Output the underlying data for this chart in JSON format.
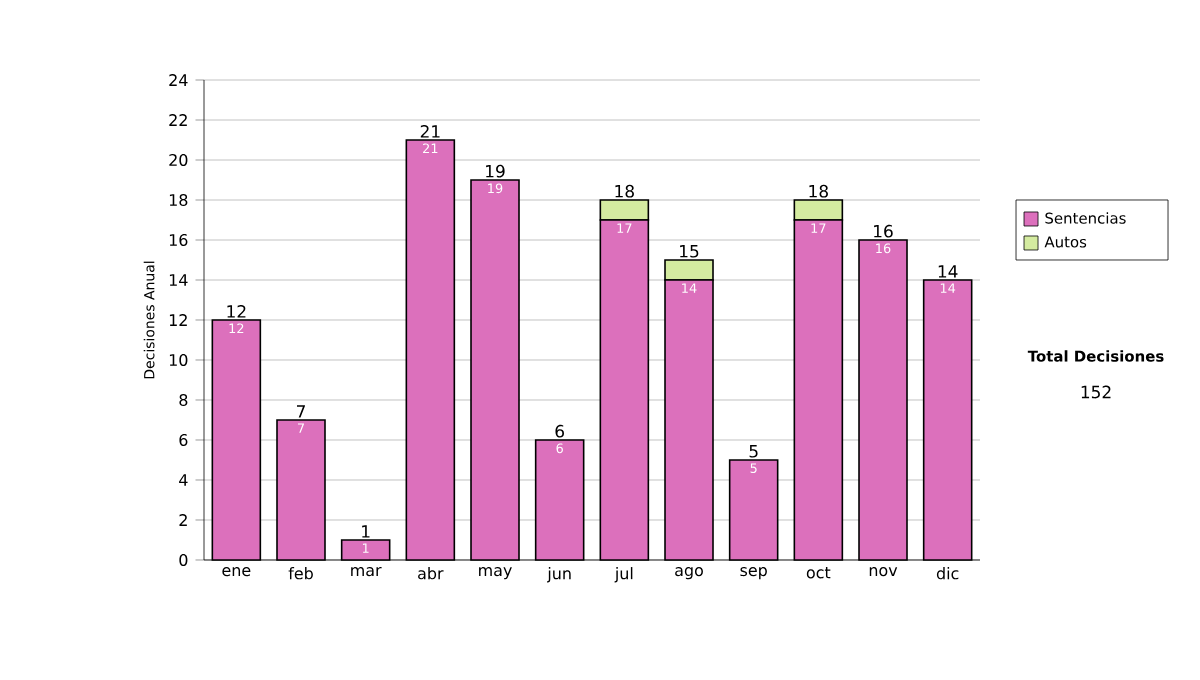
{
  "chart_data": {
    "type": "bar",
    "stacked": true,
    "ylabel": "Decisiones Anual",
    "categories": [
      "ene",
      "feb",
      "mar",
      "abr",
      "may",
      "jun",
      "jul",
      "ago",
      "sep",
      "oct",
      "nov",
      "dic"
    ],
    "series": [
      {
        "name": "Sentencias",
        "color": "#dc70bc",
        "values": [
          12,
          7,
          1,
          21,
          19,
          6,
          17,
          14,
          5,
          17,
          16,
          14
        ],
        "value_labels": [
          "12",
          "7",
          "1",
          "21",
          "19",
          "6",
          "17",
          "14",
          "5",
          "17",
          "16",
          "14"
        ]
      },
      {
        "name": "Autos",
        "color": "#d4eba0",
        "values": [
          0,
          0,
          0,
          0,
          0,
          0,
          1,
          1,
          0,
          1,
          0,
          0
        ]
      }
    ],
    "totals": [
      "12",
      "7",
      "1",
      "21",
      "19",
      "6",
      "18",
      "15",
      "5",
      "18",
      "16",
      "14"
    ],
    "ylim": [
      0,
      24
    ],
    "yticks": [
      0,
      2,
      4,
      6,
      8,
      10,
      12,
      14,
      16,
      18,
      20,
      22,
      24
    ],
    "grid": "y",
    "legend": "right",
    "annotations": [
      "Total Decisiones",
      "152"
    ]
  }
}
